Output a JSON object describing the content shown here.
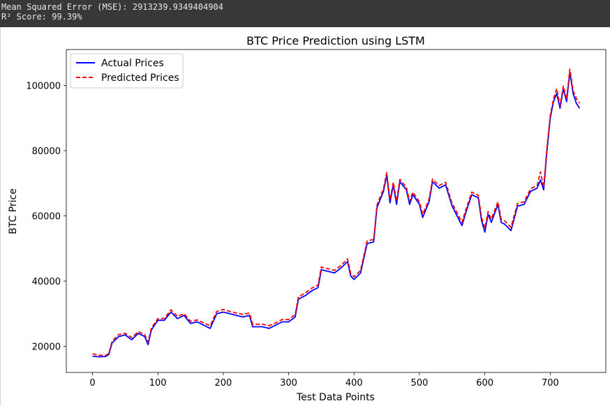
{
  "console": {
    "mse_line": "Mean Squared Error (MSE): 2913239.9349404904",
    "r2_line": "R² Score: 99.39%"
  },
  "chart_data": {
    "type": "line",
    "title": "BTC Price Prediction using LSTM",
    "xlabel": "Test Data Points",
    "ylabel": "BTC Price",
    "xlim": [
      -40,
      785
    ],
    "ylim": [
      12000,
      111000
    ],
    "xticks": [
      0,
      100,
      200,
      300,
      400,
      500,
      600,
      700
    ],
    "yticks": [
      20000,
      40000,
      60000,
      80000,
      100000
    ],
    "grid": false,
    "legend_position": "upper left",
    "series": [
      {
        "name": "Actual Prices",
        "color": "#0000ff",
        "style": "solid",
        "points": [
          [
            0,
            17000
          ],
          [
            10,
            16800
          ],
          [
            20,
            16900
          ],
          [
            25,
            17500
          ],
          [
            30,
            21000
          ],
          [
            40,
            23000
          ],
          [
            50,
            23500
          ],
          [
            60,
            22000
          ],
          [
            70,
            24000
          ],
          [
            80,
            23000
          ],
          [
            85,
            20500
          ],
          [
            90,
            25000
          ],
          [
            100,
            28000
          ],
          [
            110,
            28000
          ],
          [
            120,
            30500
          ],
          [
            130,
            28500
          ],
          [
            140,
            29500
          ],
          [
            150,
            27000
          ],
          [
            160,
            27500
          ],
          [
            170,
            26500
          ],
          [
            180,
            25500
          ],
          [
            190,
            30000
          ],
          [
            200,
            30500
          ],
          [
            210,
            30000
          ],
          [
            220,
            29500
          ],
          [
            230,
            29000
          ],
          [
            240,
            29500
          ],
          [
            245,
            26000
          ],
          [
            260,
            26000
          ],
          [
            270,
            25500
          ],
          [
            280,
            26500
          ],
          [
            290,
            27500
          ],
          [
            300,
            27500
          ],
          [
            310,
            29000
          ],
          [
            315,
            34500
          ],
          [
            325,
            35500
          ],
          [
            335,
            37000
          ],
          [
            345,
            38000
          ],
          [
            350,
            43500
          ],
          [
            360,
            43000
          ],
          [
            370,
            42500
          ],
          [
            380,
            44000
          ],
          [
            390,
            46000
          ],
          [
            395,
            41500
          ],
          [
            400,
            40500
          ],
          [
            410,
            42500
          ],
          [
            420,
            51500
          ],
          [
            430,
            52000
          ],
          [
            435,
            62500
          ],
          [
            445,
            67500
          ],
          [
            450,
            72500
          ],
          [
            455,
            64000
          ],
          [
            460,
            69500
          ],
          [
            465,
            63500
          ],
          [
            470,
            70500
          ],
          [
            480,
            68000
          ],
          [
            485,
            63500
          ],
          [
            490,
            66500
          ],
          [
            500,
            63500
          ],
          [
            505,
            59500
          ],
          [
            510,
            62000
          ],
          [
            515,
            64500
          ],
          [
            520,
            70500
          ],
          [
            530,
            68500
          ],
          [
            540,
            69500
          ],
          [
            550,
            63000
          ],
          [
            555,
            61000
          ],
          [
            565,
            57000
          ],
          [
            570,
            60500
          ],
          [
            580,
            66500
          ],
          [
            590,
            65500
          ],
          [
            595,
            58500
          ],
          [
            600,
            55000
          ],
          [
            605,
            60500
          ],
          [
            610,
            58000
          ],
          [
            620,
            63500
          ],
          [
            625,
            58000
          ],
          [
            630,
            57500
          ],
          [
            640,
            55500
          ],
          [
            650,
            63000
          ],
          [
            660,
            63500
          ],
          [
            670,
            67500
          ],
          [
            680,
            68500
          ],
          [
            685,
            71000
          ],
          [
            690,
            68000
          ],
          [
            695,
            80000
          ],
          [
            700,
            90000
          ],
          [
            705,
            95000
          ],
          [
            710,
            97500
          ],
          [
            715,
            93000
          ],
          [
            720,
            99000
          ],
          [
            725,
            95000
          ],
          [
            730,
            104000
          ],
          [
            735,
            97500
          ],
          [
            740,
            94500
          ],
          [
            745,
            93000
          ]
        ]
      },
      {
        "name": "Predicted Prices",
        "color": "#ff0000",
        "style": "dashed",
        "points": [
          [
            0,
            17700
          ],
          [
            10,
            17300
          ],
          [
            20,
            17200
          ],
          [
            25,
            17800
          ],
          [
            30,
            21600
          ],
          [
            40,
            23600
          ],
          [
            50,
            24000
          ],
          [
            60,
            22700
          ],
          [
            70,
            24500
          ],
          [
            80,
            23600
          ],
          [
            85,
            21300
          ],
          [
            90,
            25600
          ],
          [
            100,
            28500
          ],
          [
            110,
            28600
          ],
          [
            120,
            31200
          ],
          [
            130,
            29200
          ],
          [
            140,
            30000
          ],
          [
            150,
            27700
          ],
          [
            160,
            28100
          ],
          [
            170,
            27200
          ],
          [
            180,
            26300
          ],
          [
            190,
            30700
          ],
          [
            200,
            31300
          ],
          [
            210,
            30700
          ],
          [
            220,
            30200
          ],
          [
            230,
            29800
          ],
          [
            240,
            30200
          ],
          [
            245,
            26800
          ],
          [
            260,
            26800
          ],
          [
            270,
            26300
          ],
          [
            280,
            27200
          ],
          [
            290,
            28200
          ],
          [
            300,
            28200
          ],
          [
            310,
            29800
          ],
          [
            315,
            35200
          ],
          [
            325,
            36300
          ],
          [
            335,
            37800
          ],
          [
            345,
            38800
          ],
          [
            350,
            44300
          ],
          [
            360,
            43800
          ],
          [
            370,
            43300
          ],
          [
            380,
            44800
          ],
          [
            390,
            46800
          ],
          [
            395,
            42300
          ],
          [
            400,
            41300
          ],
          [
            410,
            43300
          ],
          [
            420,
            52300
          ],
          [
            430,
            52800
          ],
          [
            435,
            63300
          ],
          [
            445,
            68300
          ],
          [
            450,
            73300
          ],
          [
            455,
            65000
          ],
          [
            460,
            70300
          ],
          [
            465,
            64500
          ],
          [
            470,
            71200
          ],
          [
            480,
            68800
          ],
          [
            485,
            64500
          ],
          [
            490,
            67300
          ],
          [
            500,
            64300
          ],
          [
            505,
            60500
          ],
          [
            510,
            62800
          ],
          [
            515,
            65300
          ],
          [
            520,
            71300
          ],
          [
            530,
            69300
          ],
          [
            540,
            70300
          ],
          [
            550,
            63800
          ],
          [
            555,
            62000
          ],
          [
            565,
            58000
          ],
          [
            570,
            61300
          ],
          [
            580,
            67300
          ],
          [
            590,
            66300
          ],
          [
            595,
            59500
          ],
          [
            600,
            56200
          ],
          [
            605,
            61300
          ],
          [
            610,
            59000
          ],
          [
            620,
            64300
          ],
          [
            625,
            59000
          ],
          [
            630,
            58500
          ],
          [
            640,
            56500
          ],
          [
            650,
            63800
          ],
          [
            660,
            64300
          ],
          [
            670,
            68300
          ],
          [
            680,
            69300
          ],
          [
            685,
            73500
          ],
          [
            690,
            68800
          ],
          [
            695,
            81000
          ],
          [
            700,
            90800
          ],
          [
            705,
            95800
          ],
          [
            710,
            99000
          ],
          [
            715,
            93800
          ],
          [
            720,
            99800
          ],
          [
            725,
            95800
          ],
          [
            730,
            105000
          ],
          [
            735,
            98300
          ],
          [
            740,
            96000
          ],
          [
            745,
            94500
          ]
        ]
      }
    ]
  }
}
